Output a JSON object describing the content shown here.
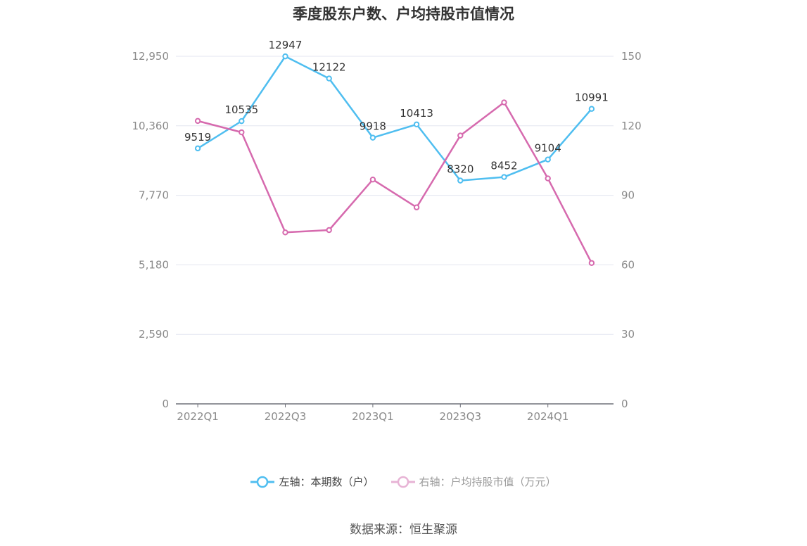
{
  "chart_data": {
    "type": "line",
    "title": "季度股东户数、户均持股市值情况",
    "categories": [
      "2022Q1",
      "2022Q2",
      "2022Q3",
      "2022Q4",
      "2023Q1",
      "2023Q2",
      "2023Q3",
      "2023Q4",
      "2024Q1",
      "2024Q2"
    ],
    "x_tick_labels": [
      "2022Q1",
      "",
      "2022Q3",
      "",
      "2023Q1",
      "",
      "2023Q3",
      "",
      "2024Q1",
      ""
    ],
    "left_axis": {
      "ylim": [
        0,
        12950
      ],
      "ticks": [
        0,
        2590,
        5180,
        7770,
        10360,
        12950
      ],
      "tick_labels": [
        "0",
        "2,590",
        "5,180",
        "7,770",
        "10,360",
        "12,950"
      ]
    },
    "right_axis": {
      "ylim": [
        0,
        150
      ],
      "ticks": [
        0,
        30,
        60,
        90,
        120,
        150
      ],
      "tick_labels": [
        "0",
        "30",
        "60",
        "90",
        "120",
        "150"
      ]
    },
    "series": [
      {
        "name": "左轴：本期数（户）",
        "axis": "left",
        "color": "#4fbef0",
        "values": [
          9519,
          10535,
          12947,
          12122,
          9918,
          10413,
          8320,
          8452,
          9104,
          10991
        ],
        "labels": [
          "9519",
          "10535",
          "12947",
          "12122",
          "9918",
          "10413",
          "8320",
          "8452",
          "9104",
          "10991"
        ]
      },
      {
        "name": "右轴：户均持股市值（万元）",
        "axis": "right",
        "color": "#d66aae",
        "values": [
          122.1,
          117.2,
          74.0,
          75.0,
          96.8,
          84.8,
          115.8,
          130.1,
          97.3,
          60.8
        ]
      }
    ],
    "grid": true,
    "legend_position": "bottom-center"
  },
  "source_text": "数据来源：恒生聚源"
}
